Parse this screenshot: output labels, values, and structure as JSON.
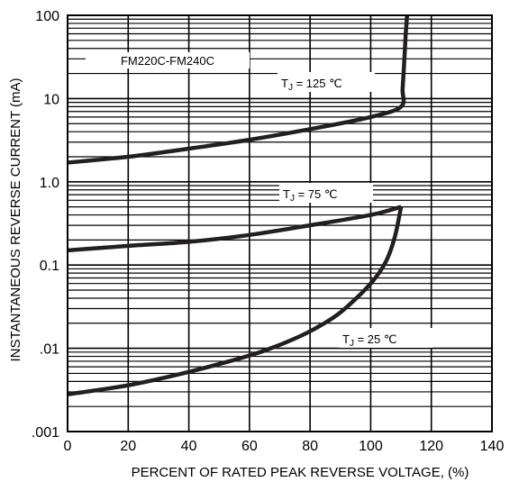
{
  "chart_data": {
    "type": "line",
    "title": "",
    "xlabel": "PERCENT OF RATED PEAK REVERSE VOLTAGE, (%)",
    "ylabel": "INSTANTANEOUS REVERSE CURRENT (mA)",
    "xlim": [
      0,
      140
    ],
    "ylim": [
      0.001,
      100
    ],
    "yscale": "log",
    "grid": true,
    "x_ticks": [
      0,
      20,
      40,
      60,
      80,
      100,
      120,
      140
    ],
    "x_tick_labels": [
      "0",
      "20",
      "40",
      "60",
      "80",
      "100",
      "120",
      "140"
    ],
    "y_ticks": [
      0.001,
      0.01,
      0.1,
      1,
      10,
      100
    ],
    "y_tick_labels": [
      ".001",
      ".01",
      "0.1",
      "1.0",
      "10",
      "100"
    ],
    "part_label": "FM220C-FM240C",
    "series": [
      {
        "label_main": "T",
        "label_sub": "J",
        "label_rest": " = 125 ℃",
        "x": [
          0,
          20,
          40,
          60,
          80,
          100,
          110,
          110.5,
          111,
          111.5,
          112
        ],
        "y": [
          1.7,
          2.0,
          2.5,
          3.2,
          4.3,
          6.0,
          8.0,
          13,
          25,
          55,
          100
        ]
      },
      {
        "label_main": "T",
        "label_sub": "J",
        "label_rest": " = 75 ℃",
        "x": [
          0,
          20,
          40,
          60,
          80,
          100,
          110
        ],
        "y": [
          0.15,
          0.17,
          0.19,
          0.23,
          0.3,
          0.4,
          0.5
        ]
      },
      {
        "label_main": "T",
        "label_sub": "J",
        "label_rest": " = 25 ℃",
        "x": [
          0,
          20,
          40,
          60,
          70,
          80,
          90,
          100,
          105,
          108,
          110
        ],
        "y": [
          0.0028,
          0.0036,
          0.0052,
          0.0082,
          0.011,
          0.016,
          0.027,
          0.06,
          0.11,
          0.22,
          0.5
        ]
      }
    ]
  }
}
